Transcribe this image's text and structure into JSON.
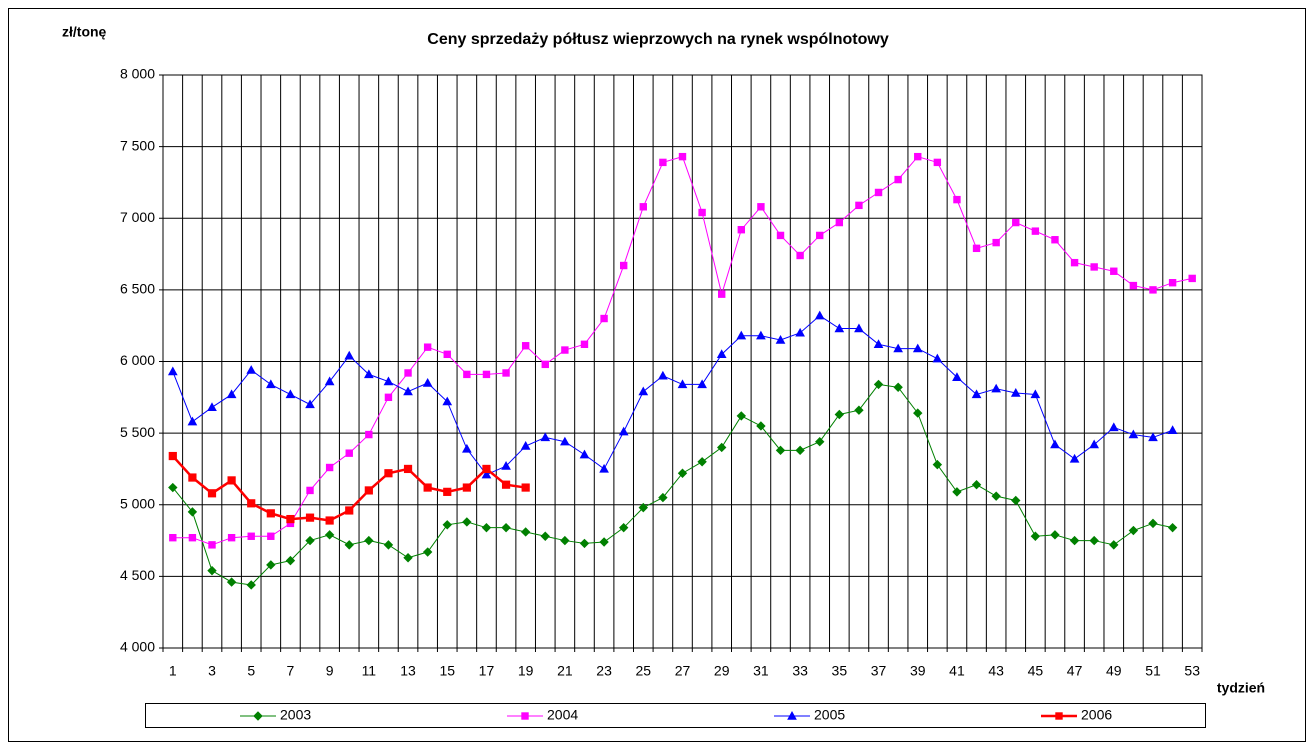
{
  "chart_data": {
    "type": "line",
    "title": "Ceny sprzedaży półtusz wieprzowych na rynek wspólnotowy",
    "y_label": "zł/tonę",
    "x_label": "tydzień",
    "categories": [
      1,
      null,
      3,
      null,
      5,
      null,
      7,
      null,
      9,
      null,
      11,
      null,
      13,
      null,
      15,
      null,
      17,
      null,
      19,
      null,
      21,
      null,
      23,
      null,
      25,
      null,
      27,
      null,
      29,
      null,
      31,
      null,
      33,
      null,
      35,
      null,
      37,
      null,
      39,
      null,
      41,
      null,
      43,
      null,
      45,
      null,
      47,
      null,
      49,
      null,
      51,
      null,
      53
    ],
    "ylim": [
      4000,
      8000
    ],
    "yticks": [
      {
        "value": 4000,
        "label": "4 000"
      },
      {
        "value": 4500,
        "label": "4 500"
      },
      {
        "value": 5000,
        "label": "5 000"
      },
      {
        "value": 5500,
        "label": "5 500"
      },
      {
        "value": 6000,
        "label": "6 000"
      },
      {
        "value": 6500,
        "label": "6 500"
      },
      {
        "value": 7000,
        "label": "7 000"
      },
      {
        "value": 7500,
        "label": "7 500"
      },
      {
        "value": 8000,
        "label": "8 000"
      }
    ],
    "grid": true,
    "legend": "bottom",
    "series": [
      {
        "name": "2003",
        "color": "#008000",
        "marker": "diamond",
        "line_width": 1,
        "values": [
          5120,
          4950,
          4540,
          4460,
          4440,
          4580,
          4610,
          4750,
          4790,
          4720,
          4750,
          4720,
          4630,
          4670,
          4860,
          4880,
          4840,
          4840,
          4810,
          4780,
          4750,
          4730,
          4740,
          4840,
          4980,
          5050,
          5220,
          5300,
          5400,
          5620,
          5550,
          5380,
          5380,
          5440,
          5630,
          5660,
          5840,
          5820,
          5640,
          5280,
          5090,
          5140,
          5060,
          5030,
          4780,
          4790,
          4750,
          4750,
          4720,
          4820,
          4870,
          4840,
          null
        ]
      },
      {
        "name": "2004",
        "color": "#ff00ff",
        "marker": "square",
        "line_width": 1,
        "values": [
          4770,
          4770,
          4720,
          4770,
          4780,
          4780,
          4870,
          5100,
          5260,
          5360,
          5490,
          5750,
          5920,
          6100,
          6050,
          5910,
          5910,
          5920,
          6110,
          5980,
          6080,
          6120,
          6300,
          6670,
          7080,
          7390,
          7430,
          7040,
          6470,
          6920,
          7080,
          6880,
          6740,
          6880,
          6970,
          7090,
          7180,
          7270,
          7430,
          7390,
          7130,
          6790,
          6830,
          6970,
          6910,
          6850,
          6690,
          6660,
          6630,
          6530,
          6500,
          6550,
          6580
        ]
      },
      {
        "name": "2005",
        "color": "#0000ff",
        "marker": "triangle",
        "line_width": 1,
        "values": [
          5930,
          5580,
          5680,
          5770,
          5940,
          5840,
          5770,
          5700,
          5860,
          6040,
          5910,
          5860,
          5790,
          5850,
          5720,
          5390,
          5210,
          5270,
          5410,
          5470,
          5440,
          5350,
          5250,
          5510,
          5790,
          5900,
          5840,
          5840,
          6050,
          6180,
          6180,
          6150,
          6200,
          6320,
          6230,
          6230,
          6120,
          6090,
          6090,
          6020,
          5890,
          5770,
          5810,
          5780,
          5770,
          5420,
          5320,
          5420,
          5540,
          5490,
          5470,
          5520,
          null
        ]
      },
      {
        "name": "2006",
        "color": "#ff0000",
        "marker": "square",
        "line_width": 2.5,
        "values": [
          5340,
          5190,
          5080,
          5170,
          5010,
          4940,
          4900,
          4910,
          4890,
          4960,
          5100,
          5220,
          5250,
          5120,
          5090,
          5120,
          5250,
          5140,
          5120,
          null,
          null,
          null,
          null,
          null,
          null,
          null,
          null,
          null,
          null,
          null,
          null,
          null,
          null,
          null,
          null,
          null,
          null,
          null,
          null,
          null,
          null,
          null,
          null,
          null,
          null,
          null,
          null,
          null,
          null,
          null,
          null,
          null,
          null
        ]
      }
    ]
  }
}
